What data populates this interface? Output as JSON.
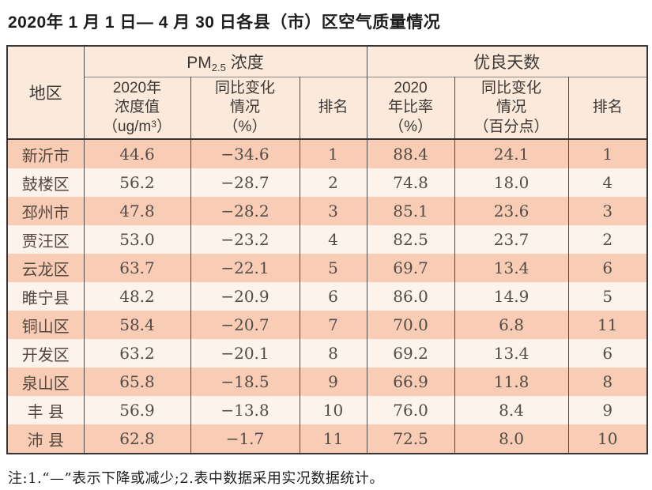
{
  "page": {
    "title": "2020年 1 月 1 日— 4 月 30 日各县（市）区空气质量情况",
    "footnote": "注:1.“—”表示下降或减少;2.表中数据采用实况数据统计。"
  },
  "colors": {
    "row_odd": "#f8ccb5",
    "row_even": "#fdf2ec",
    "header_bg": "#fbe9dc",
    "border_dark": "#363636",
    "border_light": "#8d8781",
    "text": "#4e4742",
    "title_text": "#1d1d1d"
  },
  "table": {
    "region_header": "地区",
    "group_pm": {
      "main": "PM",
      "sub": "2.5",
      "rest": " 浓度"
    },
    "group_good": "优良天数",
    "subheaders": {
      "pm_value": {
        "line1": "2020年",
        "line2": "浓度值",
        "line3_open": "（ug/m",
        "sup": "3",
        "line3_close": "）"
      },
      "pm_change": {
        "line1": "同比变化",
        "line2": "情况",
        "line3": "（%）"
      },
      "pm_rank": "排名",
      "good_rate": {
        "line1": "2020",
        "line2": "年比率",
        "line3": "（%）"
      },
      "good_change": {
        "line1": "同比变化",
        "line2": "情况",
        "line3": "（百分点）"
      },
      "good_rank": "排名"
    },
    "rows": [
      {
        "region": "新沂市",
        "pm_value": "44.6",
        "pm_change": "−34.6",
        "pm_rank": "1",
        "good_rate": "88.4",
        "good_change": "24.1",
        "good_rank": "1"
      },
      {
        "region": "鼓楼区",
        "pm_value": "56.2",
        "pm_change": "−28.7",
        "pm_rank": "2",
        "good_rate": "74.8",
        "good_change": "18.0",
        "good_rank": "4"
      },
      {
        "region": "邳州市",
        "pm_value": "47.8",
        "pm_change": "−28.2",
        "pm_rank": "3",
        "good_rate": "85.1",
        "good_change": "23.6",
        "good_rank": "3"
      },
      {
        "region": "贾汪区",
        "pm_value": "53.0",
        "pm_change": "−23.2",
        "pm_rank": "4",
        "good_rate": "82.5",
        "good_change": "23.7",
        "good_rank": "2"
      },
      {
        "region": "云龙区",
        "pm_value": "63.7",
        "pm_change": "−22.1",
        "pm_rank": "5",
        "good_rate": "69.7",
        "good_change": "13.4",
        "good_rank": "6"
      },
      {
        "region": "睢宁县",
        "pm_value": "48.2",
        "pm_change": "−20.9",
        "pm_rank": "6",
        "good_rate": "86.0",
        "good_change": "14.9",
        "good_rank": "5"
      },
      {
        "region": "铜山区",
        "pm_value": "58.4",
        "pm_change": "−20.7",
        "pm_rank": "7",
        "good_rate": "70.0",
        "good_change": "6.8",
        "good_rank": "11"
      },
      {
        "region": "开发区",
        "pm_value": "63.2",
        "pm_change": "−20.1",
        "pm_rank": "8",
        "good_rate": "69.2",
        "good_change": "13.4",
        "good_rank": "6"
      },
      {
        "region": "泉山区",
        "pm_value": "65.8",
        "pm_change": "−18.5",
        "pm_rank": "9",
        "good_rate": "66.9",
        "good_change": "11.8",
        "good_rank": "8"
      },
      {
        "region": "丰 县",
        "pm_value": "56.9",
        "pm_change": "−13.8",
        "pm_rank": "10",
        "good_rate": "76.0",
        "good_change": "8.4",
        "good_rank": "9"
      },
      {
        "region": "沛 县",
        "pm_value": "62.8",
        "pm_change": "−1.7",
        "pm_rank": "11",
        "good_rate": "72.5",
        "good_change": "8.0",
        "good_rank": "10"
      }
    ]
  }
}
